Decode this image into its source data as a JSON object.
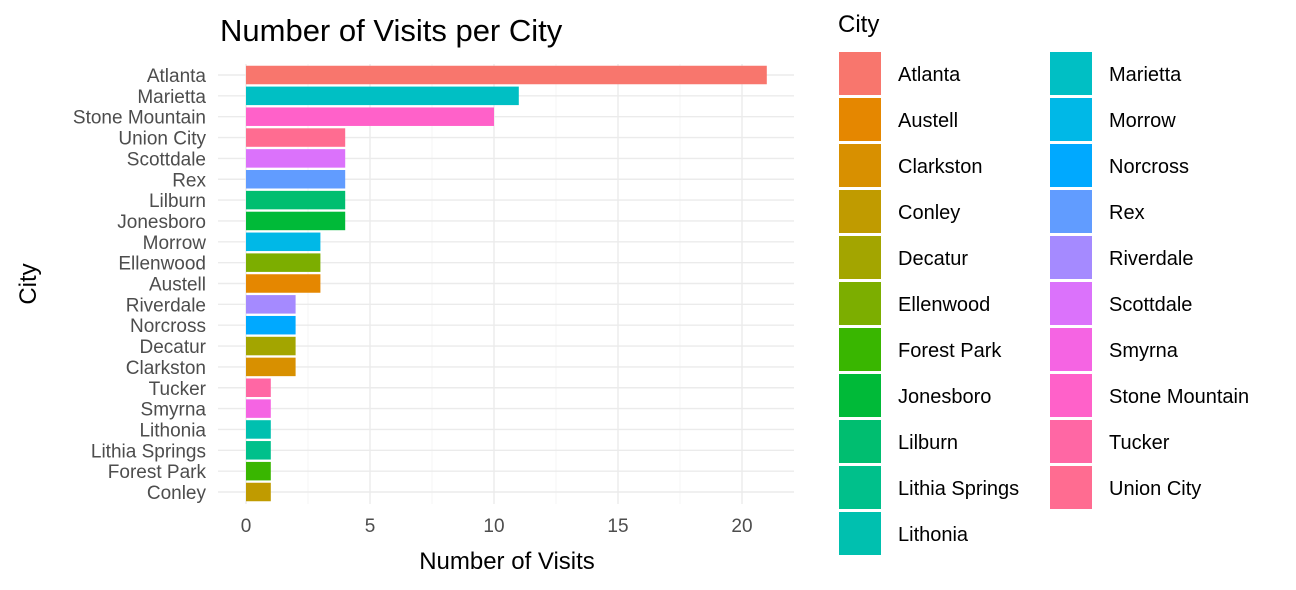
{
  "chart_data": {
    "type": "bar",
    "orientation": "horizontal",
    "title": "Number of Visits per City",
    "xlabel": "Number of Visits",
    "ylabel": "City",
    "xlim": [
      0,
      22
    ],
    "x_ticks": [
      0,
      5,
      10,
      15,
      20
    ],
    "grid": true,
    "legend_placement": "right",
    "legend_title": "City",
    "bars": [
      {
        "category": "Atlanta",
        "value": 21,
        "color": "#F8766D"
      },
      {
        "category": "Marietta",
        "value": 11,
        "color": "#00BFC4"
      },
      {
        "category": "Stone Mountain",
        "value": 10,
        "color": "#FF61C9"
      },
      {
        "category": "Union City",
        "value": 4,
        "color": "#FF6C91"
      },
      {
        "category": "Scottdale",
        "value": 4,
        "color": "#DB72FB"
      },
      {
        "category": "Rex",
        "value": 4,
        "color": "#619CFF"
      },
      {
        "category": "Lilburn",
        "value": 4,
        "color": "#00BE70"
      },
      {
        "category": "Jonesboro",
        "value": 4,
        "color": "#00BA38"
      },
      {
        "category": "Morrow",
        "value": 3,
        "color": "#00B8E7"
      },
      {
        "category": "Ellenwood",
        "value": 3,
        "color": "#7CAE00"
      },
      {
        "category": "Austell",
        "value": 3,
        "color": "#E58700"
      },
      {
        "category": "Riverdale",
        "value": 2,
        "color": "#A58AFF"
      },
      {
        "category": "Norcross",
        "value": 2,
        "color": "#00A9FF"
      },
      {
        "category": "Decatur",
        "value": 2,
        "color": "#A3A500"
      },
      {
        "category": "Clarkston",
        "value": 2,
        "color": "#D89000"
      },
      {
        "category": "Tucker",
        "value": 1,
        "color": "#FF67A4"
      },
      {
        "category": "Smyrna",
        "value": 1,
        "color": "#F564E3"
      },
      {
        "category": "Lithonia",
        "value": 1,
        "color": "#00C0AF"
      },
      {
        "category": "Lithia Springs",
        "value": 1,
        "color": "#00C08B"
      },
      {
        "category": "Forest Park",
        "value": 1,
        "color": "#39B600"
      },
      {
        "category": "Conley",
        "value": 1,
        "color": "#C09B00"
      }
    ],
    "legend": [
      {
        "label": "Atlanta",
        "color": "#F8766D"
      },
      {
        "label": "Austell",
        "color": "#E58700"
      },
      {
        "label": "Clarkston",
        "color": "#D89000"
      },
      {
        "label": "Conley",
        "color": "#C09B00"
      },
      {
        "label": "Decatur",
        "color": "#A3A500"
      },
      {
        "label": "Ellenwood",
        "color": "#7CAE00"
      },
      {
        "label": "Forest Park",
        "color": "#39B600"
      },
      {
        "label": "Jonesboro",
        "color": "#00BA38"
      },
      {
        "label": "Lilburn",
        "color": "#00BE70"
      },
      {
        "label": "Lithia Springs",
        "color": "#00C08B"
      },
      {
        "label": "Lithonia",
        "color": "#00C0AF"
      },
      {
        "label": "Marietta",
        "color": "#00BFC4"
      },
      {
        "label": "Morrow",
        "color": "#00B8E7"
      },
      {
        "label": "Norcross",
        "color": "#00A9FF"
      },
      {
        "label": "Rex",
        "color": "#619CFF"
      },
      {
        "label": "Riverdale",
        "color": "#A58AFF"
      },
      {
        "label": "Scottdale",
        "color": "#DB72FB"
      },
      {
        "label": "Smyrna",
        "color": "#F564E3"
      },
      {
        "label": "Stone Mountain",
        "color": "#FF61C9"
      },
      {
        "label": "Tucker",
        "color": "#FF67A4"
      },
      {
        "label": "Union City",
        "color": "#FF6C91"
      }
    ]
  }
}
